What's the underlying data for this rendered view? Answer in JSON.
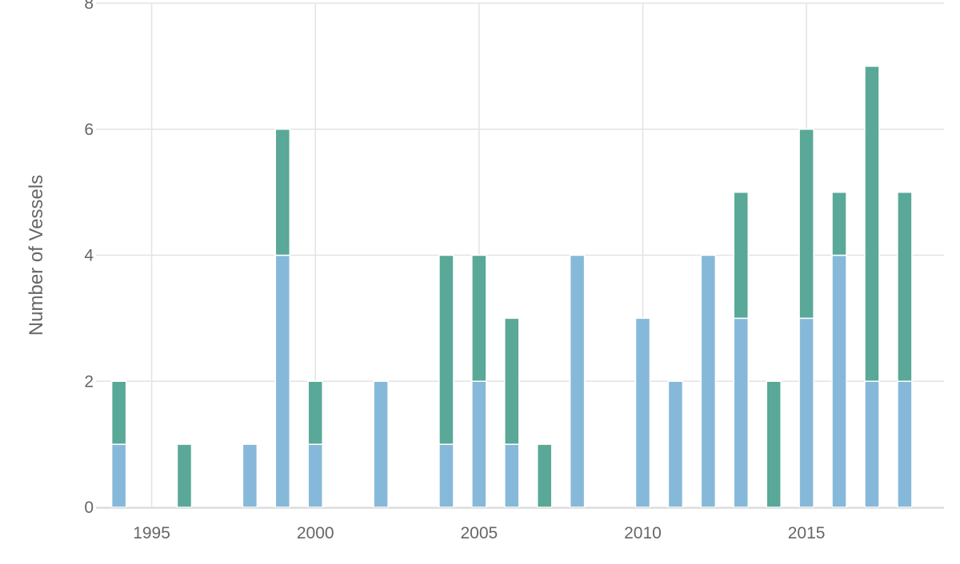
{
  "chart_data": {
    "type": "bar",
    "stacked": true,
    "title": "",
    "xlabel": "",
    "ylabel": "Number of Vessels",
    "xlim": [
      1993.3,
      2019.2
    ],
    "ylim": [
      0,
      8
    ],
    "x_ticks": [
      1995,
      2000,
      2005,
      2010,
      2015
    ],
    "y_ticks": [
      0,
      2,
      4,
      6,
      8
    ],
    "grid": true,
    "categories": [
      1994,
      1995,
      1996,
      1997,
      1998,
      1999,
      2000,
      2001,
      2002,
      2003,
      2004,
      2005,
      2006,
      2007,
      2008,
      2009,
      2010,
      2011,
      2012,
      2013,
      2014,
      2015,
      2016,
      2017,
      2018
    ],
    "series": [
      {
        "color": "#86b9d9",
        "values": [
          1,
          0,
          0,
          0,
          1,
          4,
          1,
          0,
          2,
          0,
          1,
          2,
          1,
          0,
          4,
          0,
          3,
          2,
          4,
          3,
          0,
          3,
          4,
          2,
          2
        ]
      },
      {
        "color": "#5aa897",
        "values": [
          1,
          0,
          1,
          0,
          0,
          2,
          1,
          0,
          0,
          0,
          3,
          2,
          2,
          1,
          0,
          0,
          0,
          0,
          0,
          2,
          2,
          3,
          1,
          5,
          3
        ]
      }
    ]
  }
}
